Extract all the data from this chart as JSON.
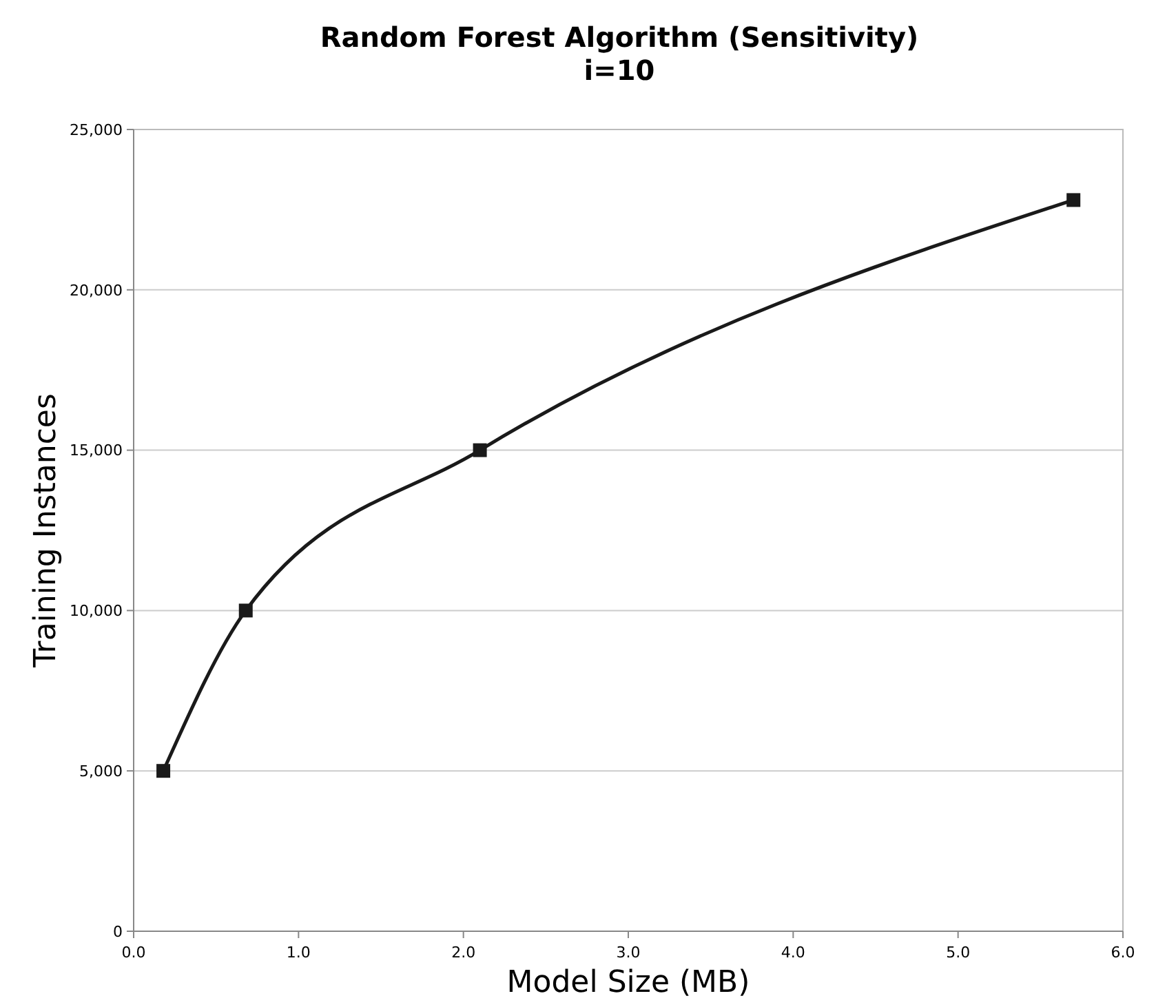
{
  "chart_data": {
    "type": "line",
    "title": "Random Forest Algorithm (Sensitivity)",
    "subtitle": "i=10",
    "xlabel": "Model Size (MB)",
    "ylabel": "Training Instances",
    "x": [
      0.18,
      0.68,
      2.1,
      5.7
    ],
    "series": [
      {
        "color": "#1a1a1a",
        "values": [
          5000,
          10000,
          15000,
          22800
        ]
      }
    ],
    "xlim": [
      0,
      6
    ],
    "xticks": [
      {
        "value": 0,
        "label": "0.0"
      },
      {
        "value": 1,
        "label": "1.0"
      },
      {
        "value": 2,
        "label": "2.0"
      },
      {
        "value": 3,
        "label": "3.0"
      },
      {
        "value": 4,
        "label": "4.0"
      },
      {
        "value": 5,
        "label": "5.0"
      },
      {
        "value": 6,
        "label": "6.0"
      }
    ],
    "ylim": [
      0,
      25000
    ],
    "yticks": [
      {
        "value": 0,
        "label": "0"
      },
      {
        "value": 5000,
        "label": "5,000"
      },
      {
        "value": 10000,
        "label": "10,000"
      },
      {
        "value": 15000,
        "label": "15,000"
      },
      {
        "value": 20000,
        "label": "20,000"
      },
      {
        "value": 25000,
        "label": "25,000"
      }
    ],
    "grid": "y",
    "marker": "square",
    "line_style": "solid"
  }
}
